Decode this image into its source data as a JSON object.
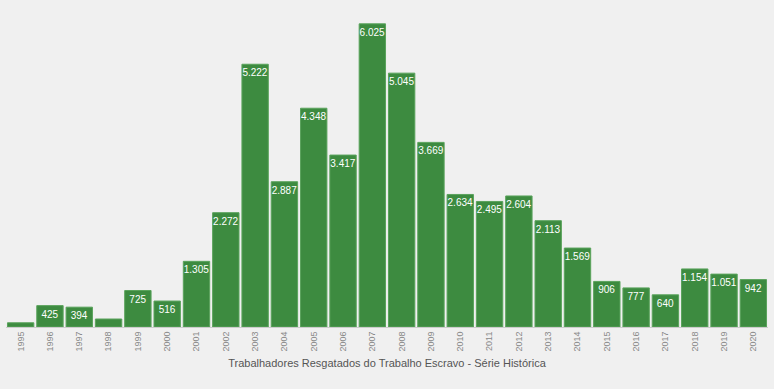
{
  "chart_data": {
    "type": "bar",
    "x_label": "Trabalhadores Resgatados do Trabalho Escravo - Série Histórica",
    "categories": [
      "1995",
      "1996",
      "1997",
      "1998",
      "1999",
      "2000",
      "2001",
      "2002",
      "2003",
      "2004",
      "2005",
      "2006",
      "2007",
      "2008",
      "2009",
      "2010",
      "2011",
      "2012",
      "2013",
      "2014",
      "2015",
      "2016",
      "2017",
      "2018",
      "2019",
      "2020"
    ],
    "values": [
      84,
      425,
      394,
      159,
      725,
      516,
      1305,
      2272,
      5222,
      2887,
      4348,
      3417,
      6025,
      5045,
      3669,
      2634,
      2495,
      2604,
      2113,
      1569,
      906,
      777,
      640,
      1154,
      1051,
      942
    ],
    "value_labels": [
      null,
      "425",
      "394",
      null,
      "725",
      "516",
      "1.305",
      "2.272",
      "5.222",
      "2.887",
      "4.348",
      "3.417",
      "6.025",
      "5.045",
      "3.669",
      "2.634",
      "2.495",
      "2.604",
      "2.113",
      "1.569",
      "906",
      "777",
      "640",
      "1.154",
      "1.051",
      "942"
    ],
    "color": "#3d8b40",
    "ylim": [
      0,
      6300
    ],
    "data_labels": true,
    "tick_labels": "x",
    "grid": false
  }
}
